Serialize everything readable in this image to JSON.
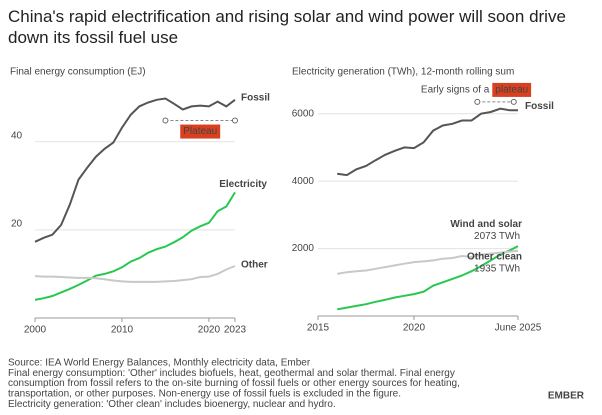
{
  "title": "China's rapid electrification and rising solar and wind power will soon drive down its fossil fuel use",
  "chart_data": [
    {
      "type": "line",
      "title": "Final energy consumption (EJ)",
      "x": [
        2000,
        2001,
        2002,
        2003,
        2004,
        2005,
        2006,
        2007,
        2008,
        2009,
        2010,
        2011,
        2012,
        2013,
        2014,
        2015,
        2016,
        2017,
        2018,
        2019,
        2020,
        2021,
        2022,
        2023
      ],
      "xlim": [
        2000,
        2023
      ],
      "xticks": [
        2000,
        2010,
        2020,
        2023
      ],
      "ylim": [
        0,
        54
      ],
      "yticks": [
        20,
        40
      ],
      "grid": true,
      "series": [
        {
          "name": "Fossil",
          "color": "#555555",
          "values": [
            17.3,
            18.2,
            18.9,
            21.1,
            25.7,
            31.4,
            34.1,
            36.6,
            38.4,
            39.8,
            43.2,
            46.1,
            48.0,
            48.9,
            49.5,
            49.8,
            48.6,
            47.3,
            48.0,
            48.2,
            48.0,
            49.1,
            48.0,
            49.5
          ]
        },
        {
          "name": "Electricity",
          "color": "#28c850",
          "values": [
            4.1,
            4.5,
            5.0,
            5.8,
            6.6,
            7.5,
            8.5,
            9.6,
            10.0,
            10.6,
            11.5,
            12.8,
            13.6,
            14.8,
            15.6,
            16.2,
            17.2,
            18.3,
            19.8,
            20.8,
            21.6,
            24.2,
            25.3,
            28.5
          ]
        },
        {
          "name": "Other",
          "color": "#c8c8c8",
          "values": [
            9.5,
            9.4,
            9.4,
            9.3,
            9.2,
            9.1,
            9.1,
            9.0,
            8.8,
            8.5,
            8.3,
            8.2,
            8.2,
            8.2,
            8.2,
            8.3,
            8.4,
            8.6,
            8.8,
            9.3,
            9.4,
            10.0,
            11.0,
            11.8
          ]
        }
      ],
      "annotation": {
        "text": "Plateau",
        "x": [
          2015,
          2023
        ],
        "y": 44.8
      }
    },
    {
      "type": "line",
      "title": "Electricity generation (TWh), 12-month rolling sum",
      "x": [
        2016,
        2016.5,
        2017,
        2017.5,
        2018,
        2018.5,
        2019,
        2019.5,
        2020,
        2020.5,
        2021,
        2021.5,
        2022,
        2022.5,
        2023,
        2023.5,
        2024,
        2024.5,
        2025,
        2025.42
      ],
      "xlim": [
        2015,
        2025.42
      ],
      "xticks": [
        2015,
        2020,
        {
          "value": 2025.42,
          "label": "June 2025"
        }
      ],
      "ylim": [
        0,
        7000
      ],
      "yticks": [
        2000,
        4000,
        6000
      ],
      "grid": true,
      "series": [
        {
          "name": "Fossil",
          "color": "#555555",
          "values": [
            4220,
            4180,
            4350,
            4450,
            4620,
            4780,
            4900,
            5000,
            4980,
            5150,
            5500,
            5650,
            5700,
            5800,
            5800,
            6000,
            6050,
            6150,
            6100,
            6100
          ]
        },
        {
          "name": "Wind and solar",
          "color": "#28c850",
          "values": [
            200,
            250,
            300,
            350,
            420,
            480,
            550,
            600,
            650,
            720,
            900,
            1000,
            1100,
            1200,
            1330,
            1480,
            1650,
            1820,
            1950,
            2073
          ],
          "value_labels": [
            null,
            null,
            null,
            null,
            null,
            null,
            null,
            null,
            null,
            null,
            null,
            null,
            null,
            null,
            null,
            null,
            null,
            null,
            null,
            "2073 TWh"
          ]
        },
        {
          "name": "Other clean",
          "color": "#c8c8c8",
          "values": [
            1250,
            1300,
            1330,
            1350,
            1400,
            1450,
            1500,
            1550,
            1600,
            1620,
            1650,
            1700,
            1720,
            1780,
            1750,
            1820,
            1850,
            1880,
            1910,
            1935
          ],
          "value_labels": [
            null,
            null,
            null,
            null,
            null,
            null,
            null,
            null,
            null,
            null,
            null,
            null,
            null,
            null,
            null,
            null,
            null,
            null,
            null,
            "1935 TWh"
          ]
        }
      ],
      "annotation": {
        "text": "Early signs of a",
        "highlight": "plateau",
        "x": [
          2023.3,
          2025.2
        ],
        "y": 6350
      }
    }
  ],
  "footer": {
    "notes": [
      "Source: IEA World Energy Balances, Monthly electricity data, Ember",
      "Final energy consumption: 'Other' includes biofuels, heat, geothermal and solar thermal. Final energy",
      "consumption from fossil refers to the on-site burning of fossil fuels or other energy sources for heating,",
      "transportation, or other purposes. Non-energy use of fossil fuels is excluded in the figure.",
      "Electricity generation: 'Other clean' includes bioenergy, nuclear and hydro."
    ],
    "logo": "EMBER"
  }
}
